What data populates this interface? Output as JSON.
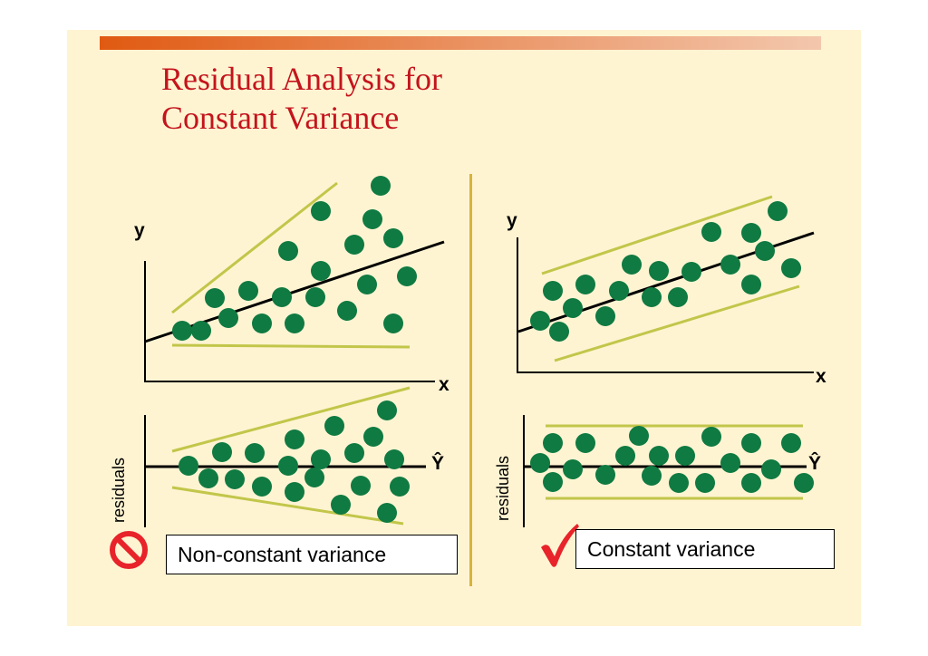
{
  "slide": {
    "title_line1": "Residual Analysis for",
    "title_line2": "Constant Variance"
  },
  "left_panel": {
    "y_label": "y",
    "x_label": "x",
    "residuals_label": "residuals",
    "yhat_label": "Ŷ",
    "caption": "Non-constant variance",
    "status_icon": "prohibited-icon",
    "status_color": "#e8232a"
  },
  "right_panel": {
    "y_label": "y",
    "x_label": "x",
    "residuals_label": "residuals",
    "yhat_label": "Ŷ",
    "caption": "Constant variance",
    "status_icon": "checkmark-icon",
    "status_color": "#e8232a"
  },
  "colors": {
    "dot": "#0f7a42",
    "band": "#c2c64a",
    "title": "#c4141c",
    "background": "#fff4d2"
  }
}
